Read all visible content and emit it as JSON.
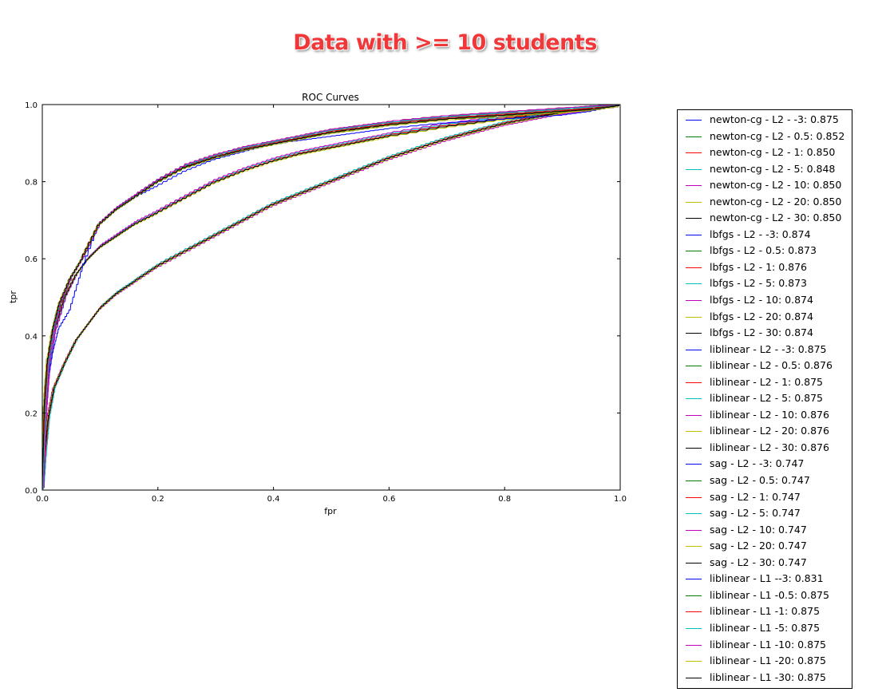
{
  "banner": "Data with >= 10 students",
  "chart_data": {
    "type": "line",
    "title": "ROC Curves",
    "xlabel": "fpr",
    "ylabel": "tpr",
    "xlim": [
      0.0,
      1.0
    ],
    "ylim": [
      0.0,
      1.0
    ],
    "xticks": [
      "0.0",
      "0.2",
      "0.4",
      "0.6",
      "0.8",
      "1.0"
    ],
    "yticks": [
      "0.0",
      "0.2",
      "0.4",
      "0.6",
      "0.8",
      "1.0"
    ],
    "grid": false,
    "legend_position": "outside-right",
    "colors": {
      "blue": "#0000ff",
      "green": "#008000",
      "red": "#ff0000",
      "cyan": "#00bfbf",
      "magenta": "#bf00bf",
      "yellow": "#bfbf00",
      "black": "#000000"
    },
    "curve_groups": {
      "A": {
        "x": [
          0,
          0.005,
          0.01,
          0.02,
          0.03,
          0.05,
          0.07,
          0.1,
          0.13,
          0.16,
          0.2,
          0.25,
          0.3,
          0.35,
          0.4,
          0.45,
          0.5,
          0.55,
          0.6,
          0.7,
          0.8,
          0.9,
          0.95,
          1.0
        ],
        "y": [
          0,
          0.22,
          0.33,
          0.42,
          0.48,
          0.55,
          0.6,
          0.69,
          0.73,
          0.76,
          0.8,
          0.84,
          0.865,
          0.885,
          0.9,
          0.915,
          0.93,
          0.94,
          0.95,
          0.965,
          0.975,
          0.985,
          0.99,
          1.0
        ]
      },
      "B": {
        "x": [
          0,
          0.005,
          0.01,
          0.02,
          0.04,
          0.06,
          0.08,
          0.1,
          0.13,
          0.16,
          0.2,
          0.25,
          0.3,
          0.35,
          0.4,
          0.45,
          0.5,
          0.55,
          0.6,
          0.7,
          0.8,
          0.9,
          0.95,
          1.0
        ],
        "y": [
          0,
          0.2,
          0.3,
          0.4,
          0.5,
          0.56,
          0.6,
          0.63,
          0.66,
          0.69,
          0.72,
          0.76,
          0.8,
          0.83,
          0.855,
          0.875,
          0.89,
          0.905,
          0.92,
          0.945,
          0.965,
          0.98,
          0.99,
          1.0
        ]
      },
      "C": {
        "x": [
          0,
          0.005,
          0.01,
          0.02,
          0.04,
          0.06,
          0.08,
          0.1,
          0.13,
          0.16,
          0.2,
          0.25,
          0.3,
          0.35,
          0.4,
          0.45,
          0.5,
          0.55,
          0.6,
          0.65,
          0.7,
          0.75,
          0.8,
          0.85,
          0.9,
          0.95,
          1.0
        ],
        "y": [
          0,
          0.1,
          0.18,
          0.26,
          0.33,
          0.39,
          0.43,
          0.47,
          0.51,
          0.54,
          0.58,
          0.62,
          0.66,
          0.7,
          0.74,
          0.77,
          0.8,
          0.83,
          0.86,
          0.885,
          0.91,
          0.93,
          0.95,
          0.965,
          0.98,
          0.99,
          1.0
        ]
      },
      "D": {
        "x": [
          0,
          0.005,
          0.01,
          0.02,
          0.03,
          0.05,
          0.07,
          0.1,
          0.13,
          0.16,
          0.2,
          0.25,
          0.3,
          0.35,
          0.4,
          0.45,
          0.5,
          0.55,
          0.6,
          0.7,
          0.8,
          0.9,
          0.95,
          1.0
        ],
        "y": [
          0,
          0.18,
          0.27,
          0.36,
          0.42,
          0.47,
          0.57,
          0.69,
          0.73,
          0.76,
          0.79,
          0.83,
          0.86,
          0.88,
          0.9,
          0.91,
          0.92,
          0.93,
          0.94,
          0.955,
          0.965,
          0.975,
          0.985,
          1.0
        ]
      }
    },
    "series": [
      {
        "name": "newton-cg - L2 - -3: 0.875",
        "color": "blue",
        "group": "A"
      },
      {
        "name": "newton-cg - L2 - 0.5: 0.852",
        "color": "green",
        "group": "B"
      },
      {
        "name": "newton-cg - L2 - 1: 0.850",
        "color": "red",
        "group": "B"
      },
      {
        "name": "newton-cg - L2 - 5: 0.848",
        "color": "cyan",
        "group": "B"
      },
      {
        "name": "newton-cg - L2 - 10: 0.850",
        "color": "magenta",
        "group": "B"
      },
      {
        "name": "newton-cg - L2 - 20: 0.850",
        "color": "yellow",
        "group": "B"
      },
      {
        "name": "newton-cg - L2 - 30: 0.850",
        "color": "black",
        "group": "B"
      },
      {
        "name": "lbfgs - L2 - -3: 0.874",
        "color": "blue",
        "group": "A"
      },
      {
        "name": "lbfgs - L2 - 0.5: 0.873",
        "color": "green",
        "group": "A"
      },
      {
        "name": "lbfgs - L2 - 1: 0.876",
        "color": "red",
        "group": "A"
      },
      {
        "name": "lbfgs - L2 - 5: 0.873",
        "color": "cyan",
        "group": "A"
      },
      {
        "name": "lbfgs - L2 - 10: 0.874",
        "color": "magenta",
        "group": "A"
      },
      {
        "name": "lbfgs - L2 - 20: 0.874",
        "color": "yellow",
        "group": "A"
      },
      {
        "name": "lbfgs - L2 - 30: 0.874",
        "color": "black",
        "group": "A"
      },
      {
        "name": "liblinear - L2 - -3: 0.875",
        "color": "blue",
        "group": "A"
      },
      {
        "name": "liblinear - L2 - 0.5: 0.876",
        "color": "green",
        "group": "A"
      },
      {
        "name": "liblinear - L2 - 1: 0.875",
        "color": "red",
        "group": "A"
      },
      {
        "name": "liblinear - L2 - 5: 0.875",
        "color": "cyan",
        "group": "A"
      },
      {
        "name": "liblinear - L2 - 10: 0.876",
        "color": "magenta",
        "group": "A"
      },
      {
        "name": "liblinear - L2 - 20: 0.876",
        "color": "yellow",
        "group": "A"
      },
      {
        "name": "liblinear - L2 - 30: 0.876",
        "color": "black",
        "group": "A"
      },
      {
        "name": "sag - L2 - -3: 0.747",
        "color": "blue",
        "group": "C"
      },
      {
        "name": "sag - L2 - 0.5: 0.747",
        "color": "green",
        "group": "C"
      },
      {
        "name": "sag - L2 - 1: 0.747",
        "color": "red",
        "group": "C"
      },
      {
        "name": "sag - L2 - 5: 0.747",
        "color": "cyan",
        "group": "C"
      },
      {
        "name": "sag - L2 - 10: 0.747",
        "color": "magenta",
        "group": "C"
      },
      {
        "name": "sag - L2 - 20: 0.747",
        "color": "yellow",
        "group": "C"
      },
      {
        "name": "sag - L2 - 30: 0.747",
        "color": "black",
        "group": "C"
      },
      {
        "name": "liblinear - L1 --3: 0.831",
        "color": "blue",
        "group": "D"
      },
      {
        "name": "liblinear - L1 -0.5: 0.875",
        "color": "green",
        "group": "A"
      },
      {
        "name": "liblinear - L1 -1: 0.875",
        "color": "red",
        "group": "A"
      },
      {
        "name": "liblinear - L1 -5: 0.875",
        "color": "cyan",
        "group": "A"
      },
      {
        "name": "liblinear - L1 -10: 0.875",
        "color": "magenta",
        "group": "A"
      },
      {
        "name": "liblinear - L1 -20: 0.875",
        "color": "yellow",
        "group": "A"
      },
      {
        "name": "liblinear - L1 -30: 0.875",
        "color": "black",
        "group": "A"
      }
    ]
  }
}
